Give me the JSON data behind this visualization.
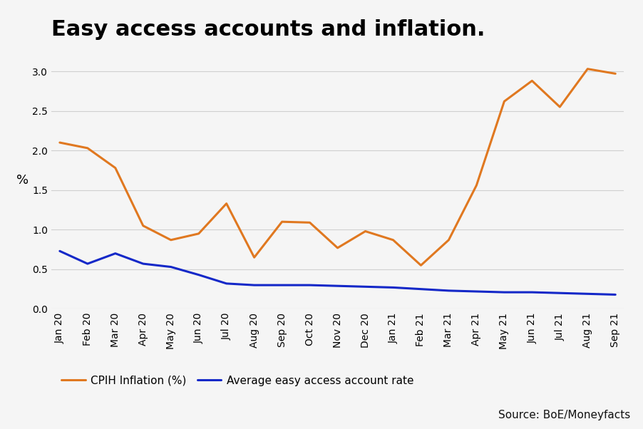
{
  "title": "Easy access accounts and inflation.",
  "ylabel": "%",
  "source_text": "Source: BoE/Moneyfacts",
  "background_color": "#f5f5f5",
  "x_labels": [
    "Jan 20",
    "Feb 20",
    "Mar 20",
    "Apr 20",
    "May 20",
    "Jun 20",
    "Jul 20",
    "Aug 20",
    "Sep 20",
    "Oct 20",
    "Nov 20",
    "Dec 20",
    "Jan 21",
    "Feb 21",
    "Mar 21",
    "Apr 21",
    "May 21",
    "Jun 21",
    "Jul 21",
    "Aug 21",
    "Sep 21"
  ],
  "cpih_inflation": [
    2.1,
    2.03,
    1.78,
    1.05,
    0.87,
    0.95,
    1.33,
    0.65,
    1.1,
    1.09,
    0.77,
    0.98,
    0.87,
    0.55,
    0.87,
    1.56,
    2.62,
    2.88,
    2.55,
    3.03,
    2.97
  ],
  "easy_access_rate": [
    0.73,
    0.57,
    0.7,
    0.57,
    0.53,
    0.43,
    0.32,
    0.3,
    0.3,
    0.3,
    0.29,
    0.28,
    0.27,
    0.25,
    0.23,
    0.22,
    0.21,
    0.21,
    0.2,
    0.19,
    0.18
  ],
  "cpih_color": "#e07820",
  "easy_access_color": "#1428c8",
  "grid_color": "#d0d0d0",
  "ylim": [
    0.0,
    3.25
  ],
  "yticks": [
    0.0,
    0.5,
    1.0,
    1.5,
    2.0,
    2.5,
    3.0
  ],
  "legend_cpih": "CPIH Inflation (%)",
  "legend_easy": "Average easy access account rate",
  "title_fontsize": 22,
  "axis_label_fontsize": 13,
  "tick_fontsize": 10,
  "legend_fontsize": 11,
  "source_fontsize": 11,
  "line_width": 2.2
}
